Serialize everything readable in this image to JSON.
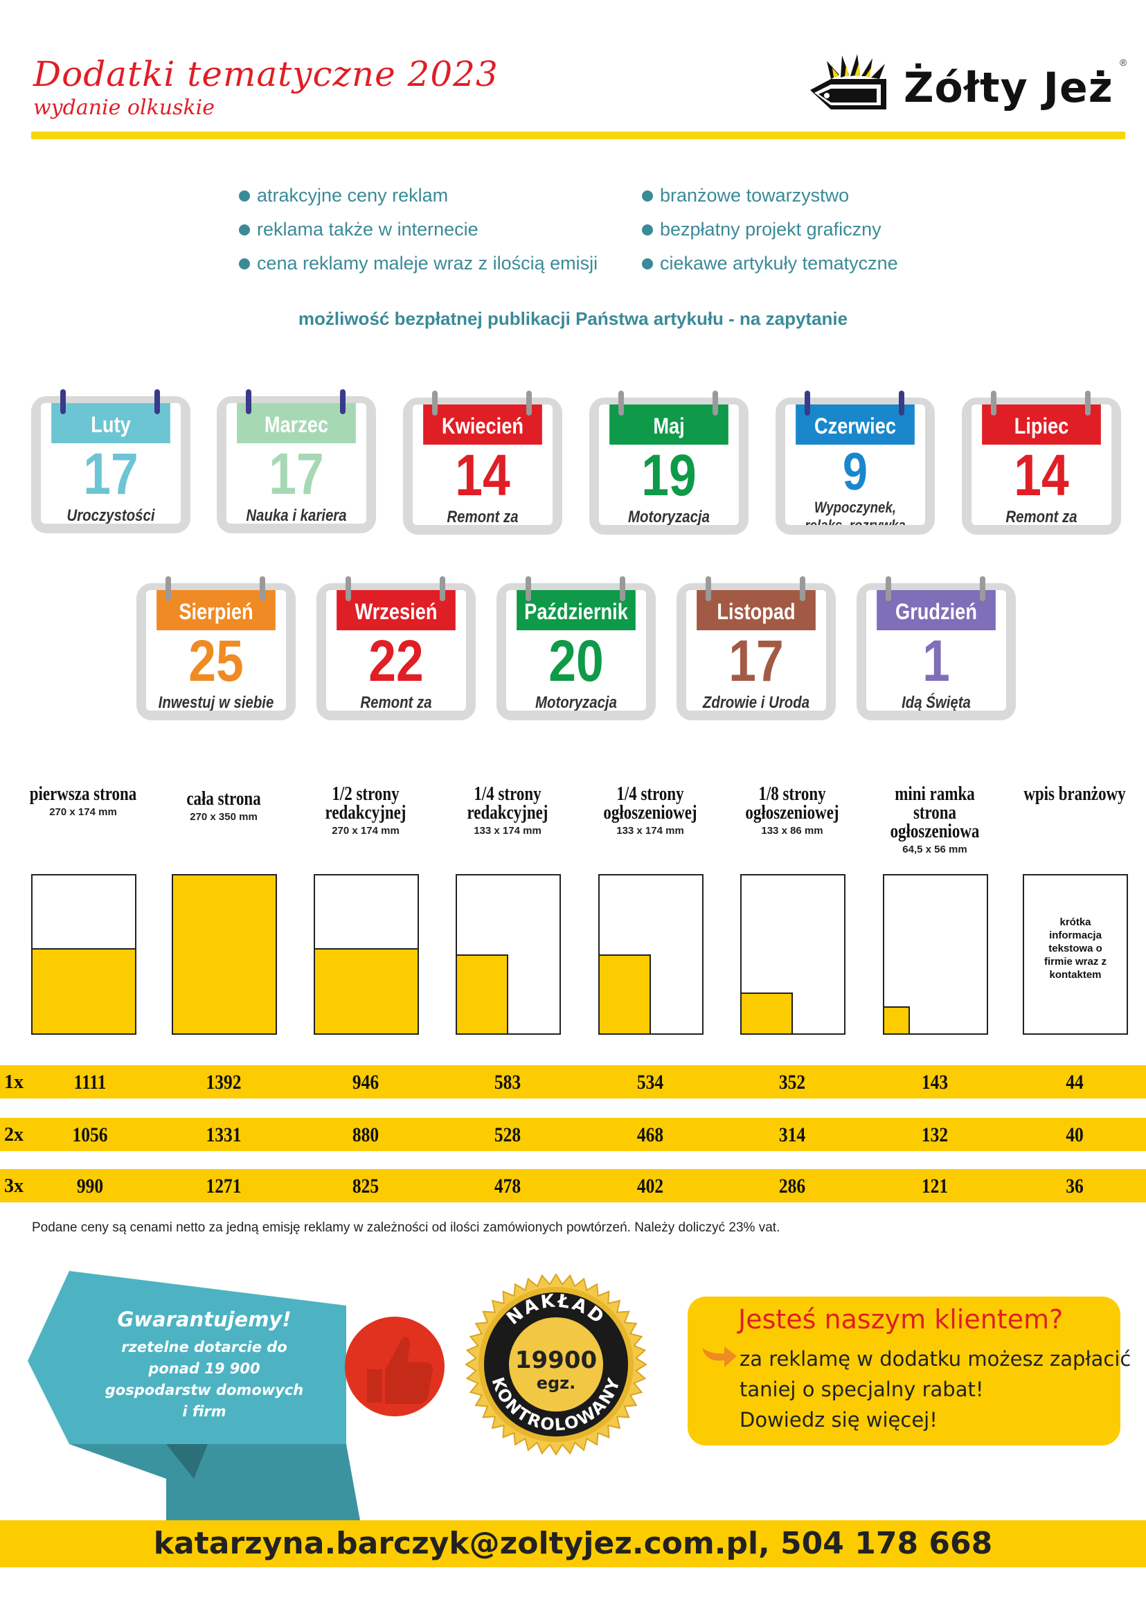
{
  "header": {
    "title": "Dodatki tematyczne 2023",
    "subtitle": "wydanie olkuskie",
    "logo_text": "Żółty Jeż",
    "logo_reg": "®"
  },
  "features": {
    "left": [
      "atrakcyjne ceny reklam",
      "reklama także w internecie",
      "cena reklamy maleje wraz z ilością emisji"
    ],
    "right": [
      "branżowe towarzystwo",
      "bezpłatny projekt graficzny",
      "ciekawe artykuły tematyczne"
    ]
  },
  "notice": "możliwość bezpłatnej publikacji Państwa artykułu - na zapytanie",
  "calendars": [
    {
      "month": "Luty",
      "day": "17",
      "topic": "Uroczystości",
      "color": "#6cc5d3",
      "day_color": "#6cc5d3"
    },
    {
      "month": "Marzec",
      "day": "17",
      "topic": "Nauka i kariera",
      "color": "#a6d8b4",
      "day_color": "#a6d8b4"
    },
    {
      "month": "Kwiecień",
      "day": "14",
      "topic": "Remont za pasem",
      "color": "#e01e26",
      "day_color": "#e01e26"
    },
    {
      "month": "Maj",
      "day": "19",
      "topic": "Motoryzacja",
      "color": "#0e9a48",
      "day_color": "#0e9a48"
    },
    {
      "month": "Czerwiec",
      "day": "9",
      "topic": "Wypoczynek, relaks, rozrywka",
      "color": "#1a87cc",
      "day_color": "#1a87cc"
    },
    {
      "month": "Lipiec",
      "day": "14",
      "topic": "Remont za pasem",
      "color": "#e01e26",
      "day_color": "#e01e26"
    },
    {
      "month": "Sierpień",
      "day": "25",
      "topic": "Inwestuj w siebie",
      "color": "#f08a24",
      "day_color": "#f08a24"
    },
    {
      "month": "Wrzesień",
      "day": "22",
      "topic": "Remont za pasem",
      "color": "#e01e26",
      "day_color": "#e01e26"
    },
    {
      "month": "Październik",
      "day": "20",
      "topic": "Motoryzacja",
      "color": "#0e9a48",
      "day_color": "#0e9a48"
    },
    {
      "month": "Listopad",
      "day": "17",
      "topic": "Zdrowie i Uroda",
      "color": "#a35a45",
      "day_color": "#a35a45"
    },
    {
      "month": "Grudzień",
      "day": "1",
      "topic": "Idą Święta",
      "color": "#7e6fb8",
      "day_color": "#7e6fb8"
    }
  ],
  "formats": [
    {
      "name": "pierwsza strona",
      "size": "270 x 174 mm",
      "fill_w": 1.0,
      "fill_h": 0.54
    },
    {
      "name": "cała strona",
      "size": "270 x 350 mm",
      "fill_w": 1.0,
      "fill_h": 1.0
    },
    {
      "name": "1/2 strony redakcyjnej",
      "size": "270 x 174 mm",
      "fill_w": 1.0,
      "fill_h": 0.54
    },
    {
      "name": "1/4 strony redakcyjnej",
      "size": "133 x 174 mm",
      "fill_w": 0.5,
      "fill_h": 0.5
    },
    {
      "name": "1/4 strony ogłoszeniowej",
      "size": "133 x 174 mm",
      "fill_w": 0.5,
      "fill_h": 0.5
    },
    {
      "name": "1/8 strony ogłoszeniowej",
      "size": "133 x 86 mm",
      "fill_w": 0.5,
      "fill_h": 0.26
    },
    {
      "name": "mini ramka strona ogłoszeniowa",
      "size": "64,5 x 56 mm",
      "fill_w": 0.25,
      "fill_h": 0.17
    },
    {
      "name": "wpis branżowy",
      "size": "",
      "fill_w": 0,
      "fill_h": 0,
      "text": "krótka informacja tekstowa o firmie wraz z kontaktem"
    }
  ],
  "prices": [
    {
      "label": "1x",
      "values": [
        "1111",
        "1392",
        "946",
        "583",
        "534",
        "352",
        "143",
        "44"
      ]
    },
    {
      "label": "2x",
      "values": [
        "1056",
        "1331",
        "880",
        "528",
        "468",
        "314",
        "132",
        "40"
      ]
    },
    {
      "label": "3x",
      "values": [
        "990",
        "1271",
        "825",
        "478",
        "402",
        "286",
        "121",
        "36"
      ]
    }
  ],
  "price_note": "Podane ceny są cenami netto za jedną emisję reklamy w zależności od ilości zamówionych powtórzeń. Należy doliczyć 23% vat.",
  "guarantee": {
    "title": "Gwarantujemy!",
    "text": "rzetelne dotarcie do ponad 19 900 gospodarstw domowych i firm"
  },
  "seal": {
    "top": "NAKŁAD",
    "bottom": "KONTROLOWANY",
    "number": "19900",
    "unit": "egz."
  },
  "client": {
    "title": "Jesteś naszym klientem?",
    "lines": [
      "za reklamę w dodatku możesz zapłacić",
      "taniej o specjalny rabat!",
      "Dowiedz się więcej!"
    ]
  },
  "contact": "katarzyna.barczyk@zoltyjez.com.pl, 504 178 668",
  "colors": {
    "accent_yellow": "#fccc00",
    "red": "#e01e26",
    "teal": "#3a8a97",
    "banner_teal": "#4db3c2"
  }
}
